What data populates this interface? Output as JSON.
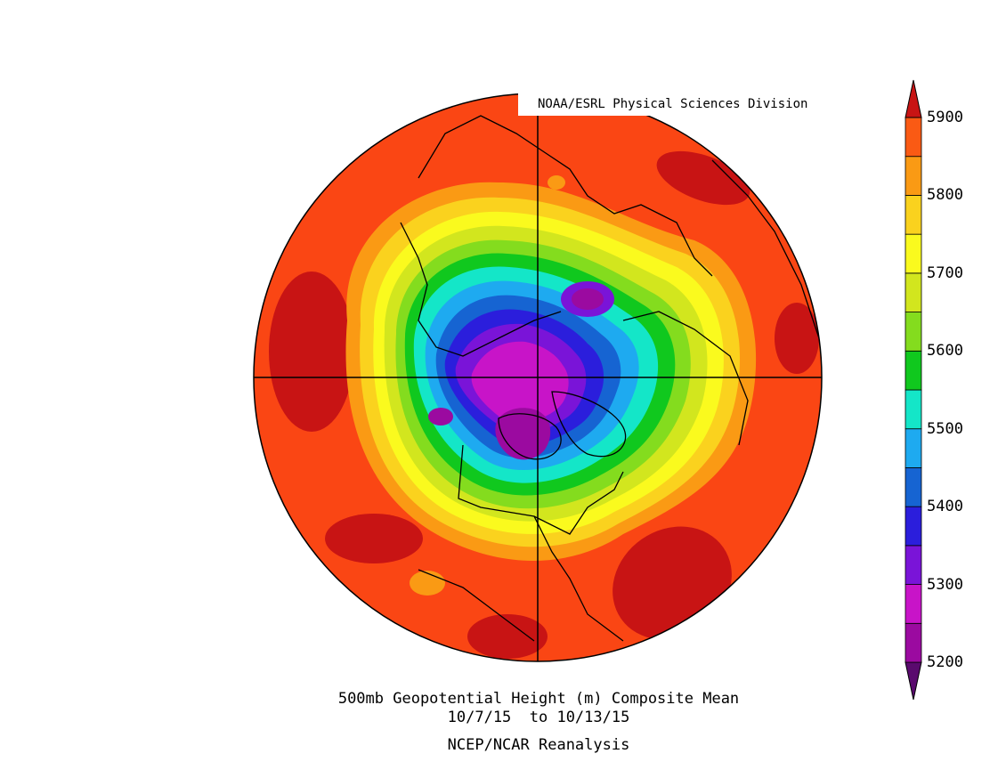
{
  "credit": "NOAA/ESRL Physical Sciences Division",
  "caption": {
    "line1": "500mb Geopotential Height (m) Composite Mean",
    "line2": "10/7/15  to 10/13/15",
    "line3": "NCEP/NCAR Reanalysis"
  },
  "colorbar": {
    "ticks": [
      "5900",
      "5800",
      "5700",
      "5600",
      "5500",
      "5400",
      "5300",
      "5200"
    ],
    "colors": [
      "#5a0a6e",
      "#9b0aa0",
      "#c814c8",
      "#7a14d8",
      "#2b1edc",
      "#1664d2",
      "#1eaaf0",
      "#14e6c8",
      "#10c81e",
      "#84dc1e",
      "#d2e61e",
      "#fafa1e",
      "#fad21e",
      "#fa9a14",
      "#fa5a14",
      "#c81414"
    ]
  },
  "map": {
    "projection": "north-polar-stereographic",
    "field": "500mb geopotential height",
    "units": "m"
  }
}
